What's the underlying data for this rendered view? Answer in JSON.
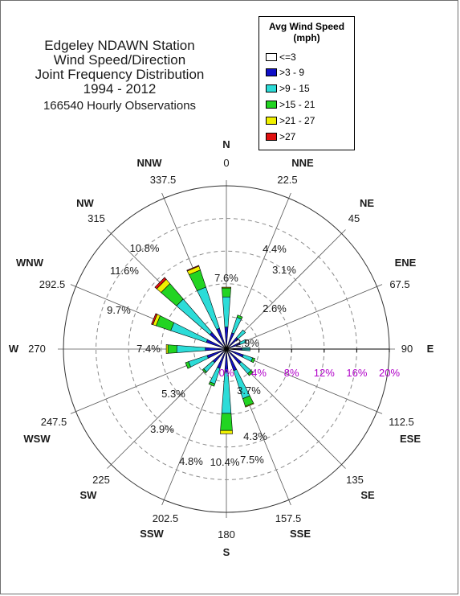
{
  "title": {
    "lines": [
      "Edgeley NDAWN Station",
      "Wind Speed/Direction",
      "Joint Frequency Distribution",
      "1994 - 2012"
    ],
    "observations": "166540 Hourly Observations"
  },
  "legend": {
    "title_line1": "Avg Wind Speed",
    "title_line2": "(mph)",
    "items": [
      {
        "label": "<=3",
        "color": "#ffffff"
      },
      {
        "label": ">3 - 9",
        "color": "#1010c8"
      },
      {
        "label": ">9 - 15",
        "color": "#2cdcd8"
      },
      {
        "label": ">15 - 21",
        "color": "#22d422"
      },
      {
        "label": ">21 - 27",
        "color": "#f0f000"
      },
      {
        "label": ">27",
        "color": "#e01010"
      }
    ]
  },
  "directions": [
    {
      "abbr": "N",
      "deg": "0"
    },
    {
      "abbr": "NNE",
      "deg": "22.5"
    },
    {
      "abbr": "NE",
      "deg": "45"
    },
    {
      "abbr": "ENE",
      "deg": "67.5"
    },
    {
      "abbr": "E",
      "deg": "90"
    },
    {
      "abbr": "ESE",
      "deg": "112.5"
    },
    {
      "abbr": "SE",
      "deg": "135"
    },
    {
      "abbr": "SSE",
      "deg": "157.5"
    },
    {
      "abbr": "S",
      "deg": "180"
    },
    {
      "abbr": "SSW",
      "deg": "202.5"
    },
    {
      "abbr": "SW",
      "deg": "225"
    },
    {
      "abbr": "WSW",
      "deg": "247.5"
    },
    {
      "abbr": "W",
      "deg": "270"
    },
    {
      "abbr": "WNW",
      "deg": "292.5"
    },
    {
      "abbr": "NW",
      "deg": "315"
    },
    {
      "abbr": "NNW",
      "deg": "337.5"
    }
  ],
  "chart_data": {
    "type": "wind-rose",
    "radial_scale": [
      "0%",
      "4%",
      "8%",
      "12%",
      "16%",
      "20%"
    ],
    "r_max": 20,
    "grid_rings": [
      4,
      8,
      12,
      16
    ],
    "speed_bins": [
      "<=3",
      ">3 - 9",
      ">9 - 15",
      ">15 - 21",
      ">21 - 27",
      ">27"
    ],
    "direction_percent_labels": [
      "7.6%",
      "4.4%",
      "3.1%",
      "2.6%",
      "2.9%",
      "3.7%",
      "4.3%",
      "7.5%",
      "10.4%",
      "4.8%",
      "3.9%",
      "5.3%",
      "7.4%",
      "9.7%",
      "11.6%",
      "10.8%"
    ],
    "petals": [
      {
        "dir": "N",
        "total": 7.6,
        "segments": [
          0.2,
          2.5,
          3.7,
          1.1,
          0.1,
          0.0
        ]
      },
      {
        "dir": "NNE",
        "total": 4.4,
        "segments": [
          0.2,
          1.9,
          2.0,
          0.3,
          0.0,
          0.0
        ]
      },
      {
        "dir": "NE",
        "total": 3.1,
        "segments": [
          0.2,
          1.7,
          1.2,
          0.0,
          0.0,
          0.0
        ]
      },
      {
        "dir": "ENE",
        "total": 2.6,
        "segments": [
          0.2,
          1.6,
          0.8,
          0.0,
          0.0,
          0.0
        ]
      },
      {
        "dir": "E",
        "total": 2.9,
        "segments": [
          0.2,
          1.7,
          1.0,
          0.0,
          0.0,
          0.0
        ]
      },
      {
        "dir": "ESE",
        "total": 3.7,
        "segments": [
          0.2,
          2.0,
          1.2,
          0.3,
          0.0,
          0.0
        ]
      },
      {
        "dir": "SE",
        "total": 4.3,
        "segments": [
          0.2,
          2.2,
          1.6,
          0.3,
          0.0,
          0.0
        ]
      },
      {
        "dir": "SSE",
        "total": 7.5,
        "segments": [
          0.2,
          2.6,
          3.6,
          1.0,
          0.1,
          0.0
        ]
      },
      {
        "dir": "S",
        "total": 10.4,
        "segments": [
          0.2,
          2.6,
          5.1,
          2.1,
          0.4,
          0.0
        ]
      },
      {
        "dir": "SSW",
        "total": 4.8,
        "segments": [
          0.2,
          2.3,
          2.0,
          0.3,
          0.0,
          0.0
        ]
      },
      {
        "dir": "SW",
        "total": 3.9,
        "segments": [
          0.2,
          2.0,
          1.5,
          0.2,
          0.0,
          0.0
        ]
      },
      {
        "dir": "WSW",
        "total": 5.3,
        "segments": [
          0.2,
          2.3,
          2.4,
          0.4,
          0.0,
          0.0
        ]
      },
      {
        "dir": "W",
        "total": 7.4,
        "segments": [
          0.2,
          2.4,
          3.5,
          1.1,
          0.2,
          0.0
        ]
      },
      {
        "dir": "WNW",
        "total": 9.7,
        "segments": [
          0.2,
          2.4,
          4.6,
          1.9,
          0.4,
          0.2
        ]
      },
      {
        "dir": "NW",
        "total": 11.6,
        "segments": [
          0.2,
          2.5,
          5.4,
          2.5,
          0.7,
          0.3
        ]
      },
      {
        "dir": "NNW",
        "total": 10.8,
        "segments": [
          0.2,
          2.5,
          5.3,
          2.2,
          0.5,
          0.1
        ]
      }
    ]
  }
}
